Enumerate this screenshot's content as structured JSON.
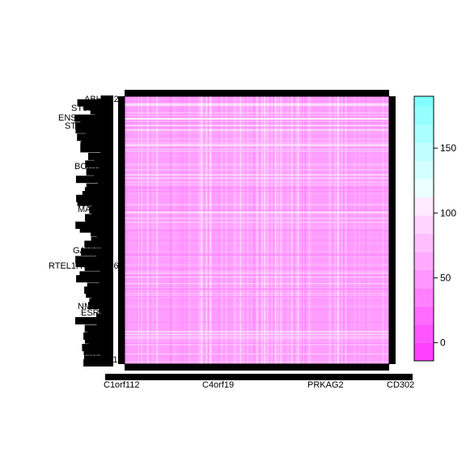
{
  "chart_data": {
    "type": "heatmap",
    "title": "",
    "xlabel": "",
    "ylabel": "",
    "row_labels": [
      "ABHD12",
      "ST6GAL1",
      "ENSG00000",
      "STON1",
      "BORCS8",
      "MAP3K2",
      "GAPDH",
      "RTEL1.TNFRSF6B",
      "NME1",
      "ESR1",
      "ATP5B",
      "TNFSF12"
    ],
    "col_labels": [
      "C1orf112",
      "C4orf19",
      "PRKAG2",
      "CD302"
    ],
    "value_range": [
      -14,
      190
    ],
    "colorbar": {
      "ticks": [
        0,
        50,
        100,
        150
      ],
      "breaks": [
        -14,
        0,
        14,
        28,
        42,
        56,
        70,
        84,
        98,
        112,
        126,
        140,
        154,
        168,
        182,
        190
      ],
      "colors": [
        "#ff40ff",
        "#ff55ff",
        "#ff6aff",
        "#ff80ff",
        "#ff95ff",
        "#ffaaff",
        "#ffbfff",
        "#ffd4ff",
        "#ffeaff",
        "#eaffff",
        "#d4ffff",
        "#bfffff",
        "#aaffff",
        "#95ffff",
        "#80ffff"
      ]
    },
    "matrix_colors": {
      "dominant": "#ff9cff",
      "darker": "#ff7bff",
      "light": "#ffc6ff",
      "white": "#ffffff"
    }
  }
}
